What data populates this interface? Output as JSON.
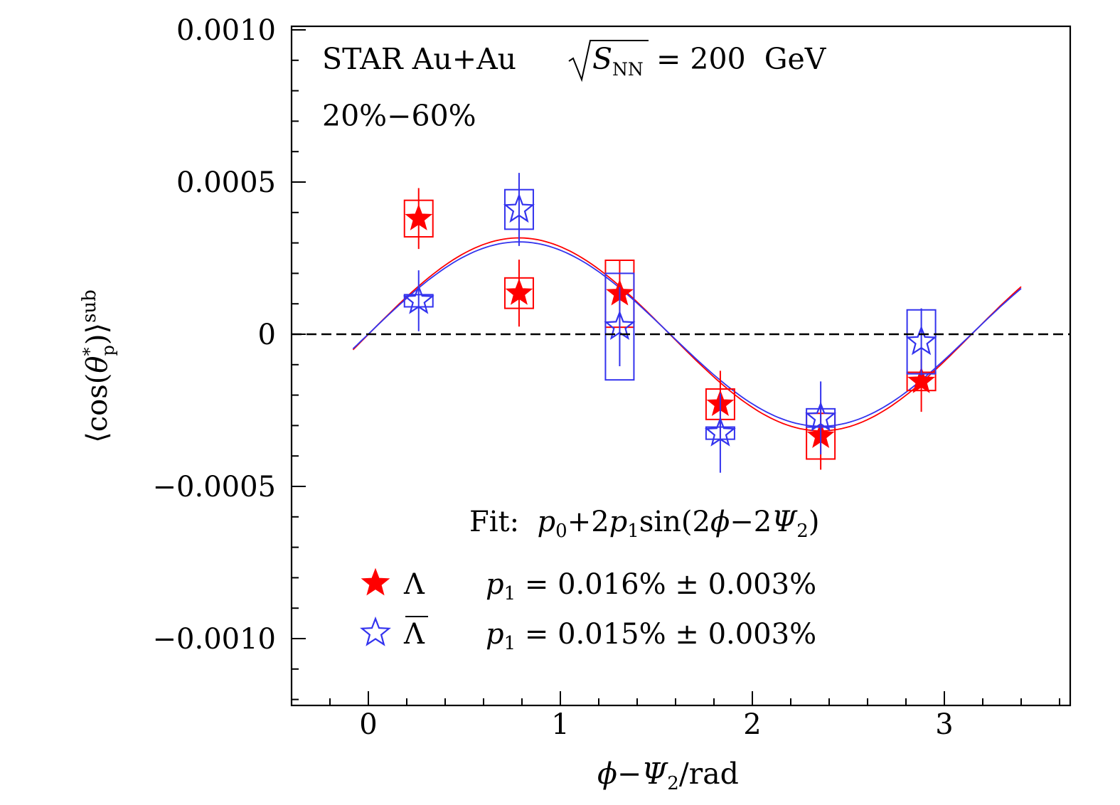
{
  "chart_data": {
    "type": "scatter",
    "annotation_line1_prefix": "STAR  Au+Au",
    "annotation_line1_sym": "S",
    "annotation_line1_sub": "NN",
    "annotation_line1_suffix": " = 200  GeV",
    "annotation_line2": "20%−60%",
    "fit_label_prefix": "Fit:  ",
    "fit_label_formula_a": "p",
    "fit_label_formula_a_sub": "0",
    "fit_label_formula_b": "+2",
    "fit_label_formula_c": "p",
    "fit_label_formula_c_sub": "1",
    "fit_label_formula_d": "sin(2",
    "fit_label_formula_e": "ϕ",
    "fit_label_formula_f": "−2",
    "fit_label_formula_g": "Ψ",
    "fit_label_formula_g_sub": "2",
    "fit_label_formula_h": ")",
    "xlabel_phi": "ϕ",
    "xlabel_minus": "−",
    "xlabel_psi": "Ψ",
    "xlabel_psi_sub": "2",
    "xlabel_unit": "/rad",
    "ylabel_open": "⟨cos(",
    "ylabel_theta": "θ",
    "ylabel_star": "*",
    "ylabel_sub": "p",
    "ylabel_close": ")⟩",
    "ylabel_sup": "sub",
    "xlim": [
      -0.4,
      3.6
    ],
    "ylim": [
      -0.0012,
      0.001
    ],
    "x_ticks": [
      0,
      1,
      2,
      3
    ],
    "x_tick_labels": [
      "0",
      "1",
      "2",
      "3"
    ],
    "y_ticks": [
      0.001,
      0.0005,
      0,
      -0.0005,
      -0.001
    ],
    "y_tick_labels": [
      "0.0010",
      "0.0005",
      "0",
      "−0.0005",
      "−0.0010"
    ],
    "zero_line": "dashed",
    "legend": [
      {
        "symbol": "Λ",
        "overbar": false,
        "fit_text": " = 0.016% ± 0.003%"
      },
      {
        "symbol": "Λ",
        "overbar": true,
        "fit_text": " = 0.015% ± 0.003%"
      }
    ],
    "series": [
      {
        "name": "Λ",
        "color": "#ff0000",
        "marker": "filled-star",
        "x": [
          0.262,
          0.785,
          1.309,
          1.833,
          2.356,
          2.88
        ],
        "y": [
          0.00038,
          0.000135,
          0.000133,
          -0.00023,
          -0.000335,
          -0.000155
        ],
        "stat_err": [
          0.0001,
          0.00011,
          0.00011,
          0.00011,
          0.00011,
          0.0001
        ],
        "sys_err": [
          6e-05,
          5e-05,
          0.00011,
          5e-05,
          7.5e-05,
          3e-05
        ],
        "fit": {
          "p0": -5e-07,
          "amplitude": 0.000317
        }
      },
      {
        "name": "Λ̅",
        "color": "#3333ee",
        "marker": "open-star",
        "x": [
          0.262,
          0.785,
          1.309,
          1.833,
          2.356,
          2.88
        ],
        "y": [
          0.00011,
          0.00041,
          2.5e-05,
          -0.000325,
          -0.000275,
          -2.5e-05
        ],
        "stat_err": [
          0.0001,
          0.00012,
          0.00013,
          0.00013,
          0.00012,
          0.00011
        ],
        "sys_err": [
          2e-05,
          6.5e-05,
          0.000175,
          2e-05,
          3e-05,
          0.000105
        ],
        "fit": {
          "p0": 5e-07,
          "amplitude": 0.000303
        }
      }
    ]
  }
}
